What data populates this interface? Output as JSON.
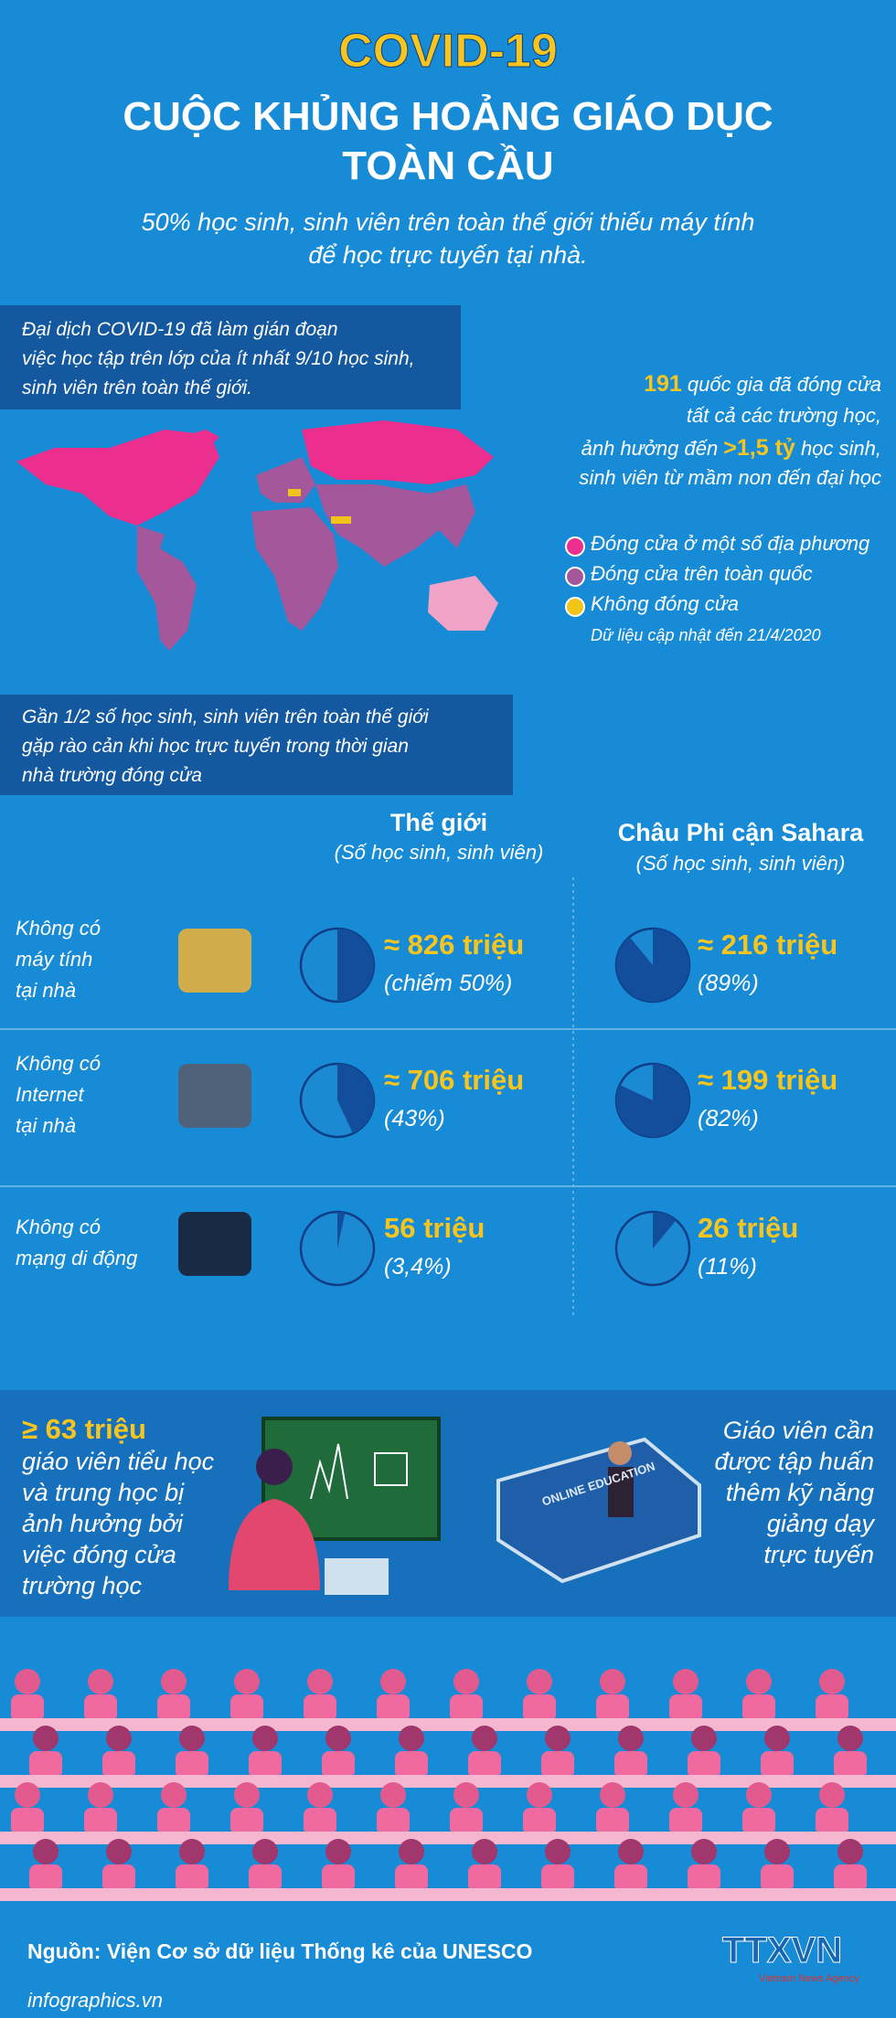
{
  "header": {
    "title": "COVID-19",
    "heading_lines": [
      "CUỘC KHỦNG HOẢNG GIÁO DỤC",
      "TOÀN CẦU"
    ],
    "subtitle_lines": [
      "50% học sinh, sinh viên trên toàn thế giới thiếu máy tính",
      "để học trực tuyến tại nhà."
    ]
  },
  "closure": {
    "intro_lines": [
      "Đại dịch COVID-19 đã làm gián đoạn",
      "việc học tập trên lớp của ít nhất 9/10 học sinh,",
      "sinh viên trên toàn thế giới."
    ],
    "stats": {
      "countries": "191",
      "countries_text": " quốc gia đã đóng cửa",
      "line2": "tất cả các trường học,",
      "affected_prefix": "ảnh hưởng đến ",
      "affected": ">1,5 tỷ",
      "affected_suffix": " học sinh,",
      "line4": "sinh viên từ mầm non đến đại học"
    },
    "legend": [
      {
        "label": "Đóng cửa ở một số địa phương",
        "color": "#ec2f8f"
      },
      {
        "label": "Đóng cửa trên toàn quốc",
        "color": "#a4579a"
      },
      {
        "label": "Không đóng cửa",
        "color": "#f2c318"
      }
    ],
    "note": "Dữ liệu cập nhật đến 21/4/2020"
  },
  "barriers": {
    "intro_lines": [
      "Gần 1/2 số học sinh, sinh viên trên toàn thế giới",
      "gặp rào cản khi học trực tuyến trong thời gian",
      "nhà trường đóng cửa"
    ],
    "columns": [
      {
        "title": "Thế giới",
        "subtitle": "(Số học sinh, sinh viên)"
      },
      {
        "title": "Châu Phi cận Sahara",
        "subtitle": "(Số học sinh, sinh viên)"
      }
    ],
    "rows": [
      {
        "label_lines": [
          "Không có",
          "máy tính",
          "tại nhà"
        ],
        "world": {
          "value_label": "≈ 826 triệu",
          "share": 50,
          "share_label": "(chiếm 50%)"
        },
        "africa": {
          "value_label": "≈ 216 triệu",
          "share": 89,
          "share_label": "(89%)"
        }
      },
      {
        "label_lines": [
          "Không có",
          "Internet",
          "tại nhà"
        ],
        "world": {
          "value_label": "≈ 706 triệu",
          "share": 43,
          "share_label": "(43%)"
        },
        "africa": {
          "value_label": "≈ 199 triệu",
          "share": 82,
          "share_label": "(82%)"
        }
      },
      {
        "label_lines": [
          "Không có",
          "mạng di động"
        ],
        "world": {
          "value_label": "56 triệu",
          "share": 3.4,
          "share_label": "(3,4%)"
        },
        "africa": {
          "value_label": "26 triệu",
          "share": 11,
          "share_label": "(11%)"
        }
      }
    ]
  },
  "teachers": {
    "count": "≥ 63 triệu",
    "lines": [
      "giáo viên tiểu học",
      "và trung học bị",
      "ảnh hưởng bởi",
      "việc đóng cửa",
      "trường học"
    ],
    "book_label": "ONLINE EDUCATION",
    "training_lines": [
      "Giáo viên cần",
      "được tập huấn",
      "thêm kỹ năng",
      "giảng dạy",
      "trực tuyến"
    ]
  },
  "footer": {
    "source": "Nguồn: Viện Cơ sở dữ liệu Thống kê của UNESCO",
    "site": "infographics.vn",
    "logo": "TTXVN",
    "agency": "Vietnam News Agency"
  }
}
